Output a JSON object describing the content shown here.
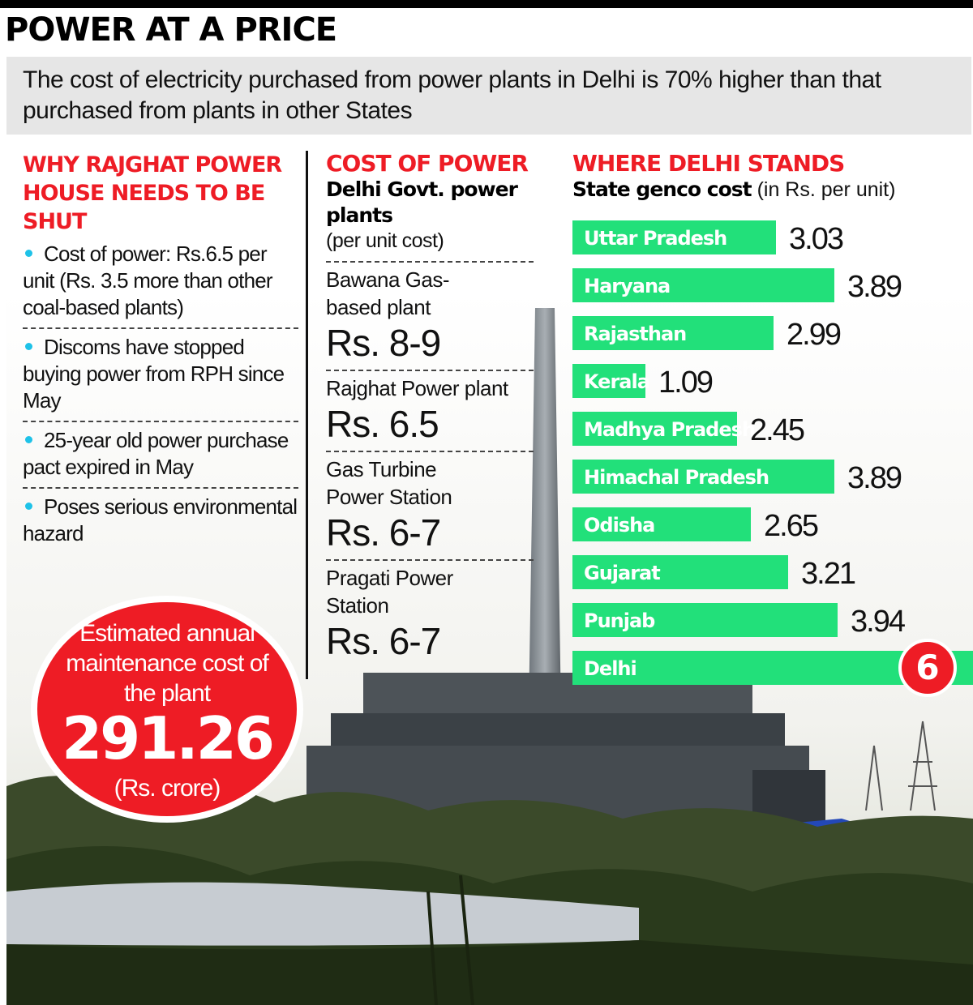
{
  "title": "POWER AT A PRICE",
  "subtitle": "The cost of electricity purchased from power plants in Delhi is 70% higher than that purchased from plants in other States",
  "reasons": {
    "heading": "WHY RAJGHAT POWER HOUSE NEEDS TO BE SHUT",
    "items": [
      "Cost of power: Rs.6.5 per unit (Rs. 3.5 more than other coal-based plants)",
      "Discoms have stopped buying power from RPH since May",
      "25-year old power purchase pact expired in May",
      "Poses serious environmental hazard"
    ]
  },
  "cost_of_power": {
    "heading": "COST OF POWER",
    "subheading": "Delhi Govt. power plants",
    "unit": "(per unit cost)",
    "plants": [
      {
        "name": "Bawana Gas-based plant",
        "cost": "Rs. 8-9"
      },
      {
        "name": "Rajghat Power plant",
        "cost": "Rs. 6.5"
      },
      {
        "name": "Gas Turbine Power Station",
        "cost": "Rs. 6-7"
      },
      {
        "name": "Pragati Power Station",
        "cost": "Rs. 6-7"
      }
    ]
  },
  "maintenance": {
    "text": "Estimated annual maintenance cost of the plant",
    "value": "291.26",
    "unit": "(Rs. crore)"
  },
  "chart_data": {
    "type": "bar",
    "orientation": "horizontal",
    "title": "WHERE DELHI STANDS",
    "subtitle_bold": "State genco cost",
    "subtitle_unit": "(in Rs. per unit)",
    "categories": [
      "Uttar Pradesh",
      "Haryana",
      "Rajasthan",
      "Kerala",
      "Madhya Pradesh",
      "Himachal Pradesh",
      "Odisha",
      "Gujarat",
      "Punjab",
      "Delhi"
    ],
    "values": [
      3.03,
      3.89,
      2.99,
      1.09,
      2.45,
      3.89,
      2.65,
      3.21,
      3.94,
      6
    ],
    "value_labels": [
      "3.03",
      "3.89",
      "2.99",
      "1.09",
      "2.45",
      "3.89",
      "2.65",
      "3.21",
      "3.94",
      "6"
    ],
    "colors": {
      "bar": "#22e07a",
      "highlight": "#ee1c25",
      "heading": "#ee1c25",
      "bullet": "#1ec2e8"
    }
  }
}
